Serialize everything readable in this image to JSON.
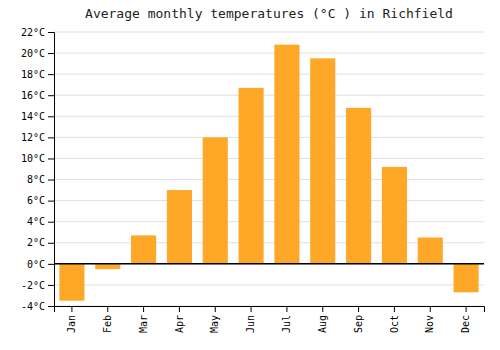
{
  "chart_data": {
    "type": "bar",
    "title": "Average monthly temperatures (°C ) in Richfield",
    "categories": [
      "Jan",
      "Feb",
      "Mar",
      "Apr",
      "May",
      "Jun",
      "Jul",
      "Aug",
      "Sep",
      "Oct",
      "Nov",
      "Dec"
    ],
    "values": [
      -3.5,
      -0.5,
      2.7,
      7.0,
      12.0,
      16.7,
      20.8,
      19.5,
      14.8,
      9.2,
      2.5,
      -2.7
    ],
    "color": "#FFA726",
    "ylim": [
      -4,
      22
    ],
    "yticks": [
      {
        "value": -4,
        "label": "-4°C"
      },
      {
        "value": -2,
        "label": "-2°C"
      },
      {
        "value": 0,
        "label": "0°C"
      },
      {
        "value": 2,
        "label": "2°C"
      },
      {
        "value": 4,
        "label": "4°C"
      },
      {
        "value": 6,
        "label": "6°C"
      },
      {
        "value": 8,
        "label": "8°C"
      },
      {
        "value": 10,
        "label": "10°C"
      },
      {
        "value": 12,
        "label": "12°C"
      },
      {
        "value": 14,
        "label": "14°C"
      },
      {
        "value": 16,
        "label": "16°C"
      },
      {
        "value": 18,
        "label": "18°C"
      },
      {
        "value": 20,
        "label": "20°C"
      },
      {
        "value": 22,
        "label": "22°C"
      }
    ],
    "grid": true
  }
}
